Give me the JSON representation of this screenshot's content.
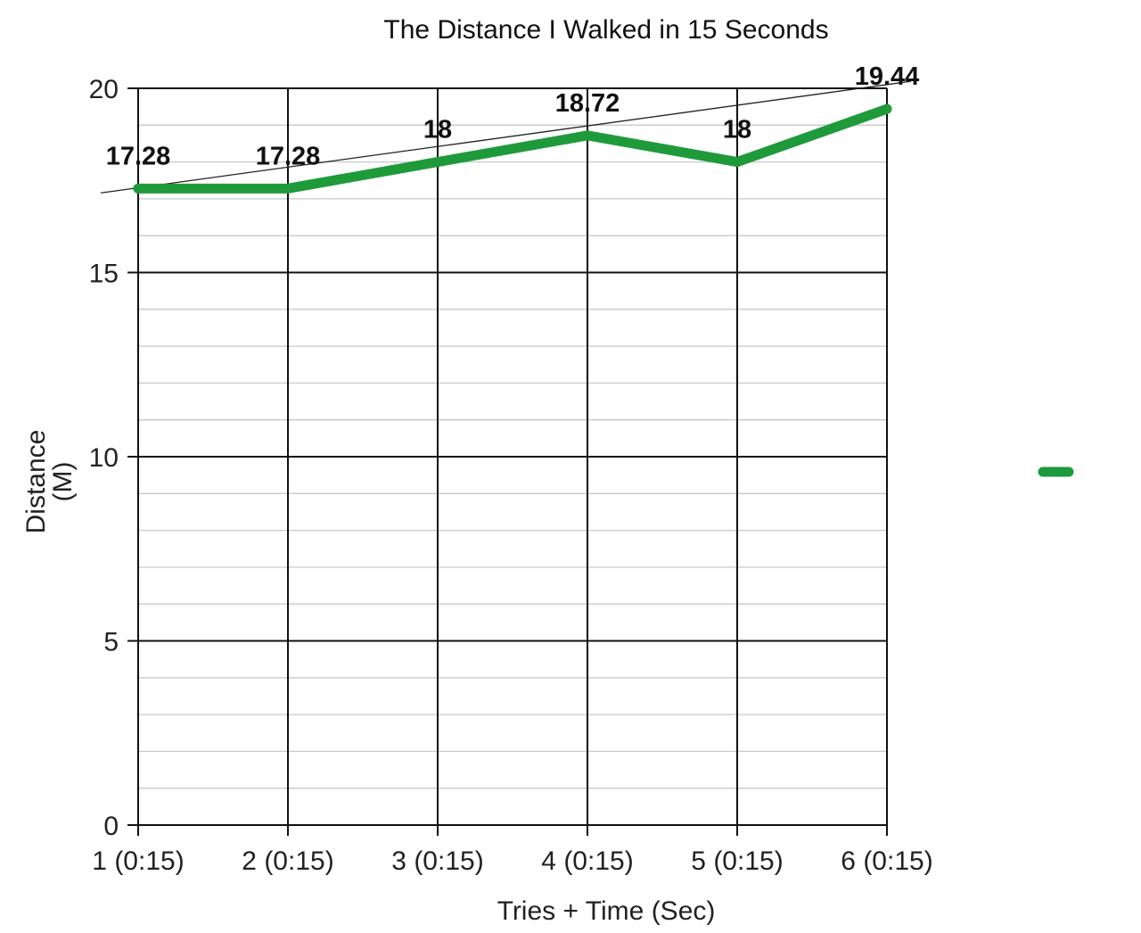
{
  "chart_data": {
    "type": "line",
    "title": "The Distance I Walked in 15 Seconds",
    "xlabel": "Tries + Time (Sec)",
    "ylabel": [
      "Distance",
      "(M)"
    ],
    "categories": [
      "1 (0:15)",
      "2 (0:15)",
      "3 (0:15)",
      "4 (0:15)",
      "5 (0:15)",
      "6 (0:15)"
    ],
    "series": [
      {
        "values": [
          17.28,
          17.28,
          18,
          18.72,
          18,
          19.44
        ],
        "color": "#1e9a3a"
      }
    ],
    "data_labels": [
      "17.28",
      "17.28",
      "18",
      "18.72",
      "18",
      "19.44"
    ],
    "trendline": {
      "start_value": 17.3,
      "end_value": 20.1
    },
    "ylim": [
      0,
      20
    ],
    "yticks": [
      0,
      5,
      10,
      15,
      20
    ],
    "grid": true,
    "legend": {
      "marker_color": "#1e9a3a",
      "position": "right"
    }
  }
}
